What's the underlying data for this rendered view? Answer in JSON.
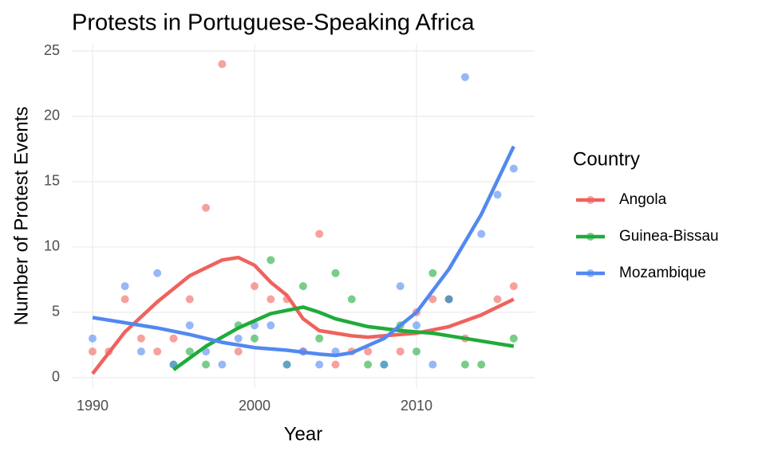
{
  "chart_data": {
    "type": "scatter",
    "title": "Protests in Portuguese-Speaking Africa",
    "x_label": "Year",
    "y_label": "Number of Protest Events",
    "legend_title": "Country",
    "legend_position": "right",
    "grid": true,
    "xlim": [
      1988.72,
      2017.29
    ],
    "xticks": [
      1990,
      2000,
      2010
    ],
    "ylim": [
      -0.8,
      25.55
    ],
    "yticks": [
      0,
      5,
      10,
      15,
      20,
      25
    ],
    "series": [
      {
        "name": "Angola",
        "color": "#f0625c",
        "x": [
          1990,
          1991,
          1992,
          1993,
          1994,
          1995,
          1996,
          1997,
          1998,
          1999,
          2000,
          2001,
          2002,
          2003,
          2004,
          2005,
          2006,
          2007,
          2009,
          2010,
          2011,
          2012,
          2013,
          2015,
          2016
        ],
        "values": [
          2,
          2,
          6,
          3,
          2,
          3,
          6,
          13,
          24,
          2,
          7,
          6,
          6,
          2,
          11,
          1,
          2,
          2,
          2,
          5,
          6,
          6,
          3,
          6,
          7
        ],
        "smooth": {
          "x": [
            1990,
            1992,
            1994,
            1996,
            1998,
            1999,
            2000,
            2001,
            2002,
            2003,
            2004,
            2005,
            2006,
            2007,
            2008,
            2010,
            2012,
            2014,
            2016
          ],
          "values": [
            0.3,
            3.5,
            5.8,
            7.8,
            9.0,
            9.2,
            8.6,
            7.3,
            6.3,
            4.5,
            3.6,
            3.4,
            3.2,
            3.1,
            3.2,
            3.4,
            3.9,
            4.8,
            6.0
          ]
        }
      },
      {
        "name": "Guinea-Bissau",
        "color": "#1fab3a",
        "x": [
          1995,
          1996,
          1997,
          1999,
          2000,
          2001,
          2002,
          2003,
          2004,
          2005,
          2006,
          2007,
          2008,
          2009,
          2010,
          2011,
          2012,
          2013,
          2014,
          2016
        ],
        "values": [
          1,
          2,
          1,
          4,
          3,
          9,
          1,
          7,
          3,
          8,
          6,
          1,
          1,
          4,
          2,
          8,
          6,
          1,
          1,
          3
        ],
        "smooth": {
          "x": [
            1995,
            1997,
            1999,
            2001,
            2003,
            2004,
            2005,
            2007,
            2009,
            2011,
            2013,
            2016
          ],
          "values": [
            0.6,
            2.4,
            3.8,
            4.9,
            5.4,
            5.0,
            4.5,
            3.9,
            3.6,
            3.4,
            3.0,
            2.4
          ]
        }
      },
      {
        "name": "Mozambique",
        "color": "#5288f0",
        "x": [
          1990,
          1992,
          1993,
          1994,
          1995,
          1996,
          1997,
          1998,
          1999,
          2000,
          2001,
          2002,
          2003,
          2004,
          2005,
          2008,
          2009,
          2010,
          2011,
          2012,
          2013,
          2014,
          2015,
          2016
        ],
        "values": [
          3,
          7,
          2,
          8,
          1,
          4,
          2,
          1,
          3,
          4,
          4,
          1,
          2,
          1,
          2,
          1,
          7,
          4,
          1,
          6,
          23,
          11,
          14,
          16
        ],
        "smooth": {
          "x": [
            1990,
            1992,
            1994,
            1996,
            1998,
            2000,
            2002,
            2004,
            2005,
            2006,
            2008,
            2010,
            2012,
            2014,
            2016
          ],
          "values": [
            4.6,
            4.2,
            3.8,
            3.3,
            2.7,
            2.3,
            2.1,
            1.8,
            1.7,
            1.9,
            3.0,
            5.0,
            8.3,
            12.5,
            17.7
          ]
        }
      }
    ]
  }
}
